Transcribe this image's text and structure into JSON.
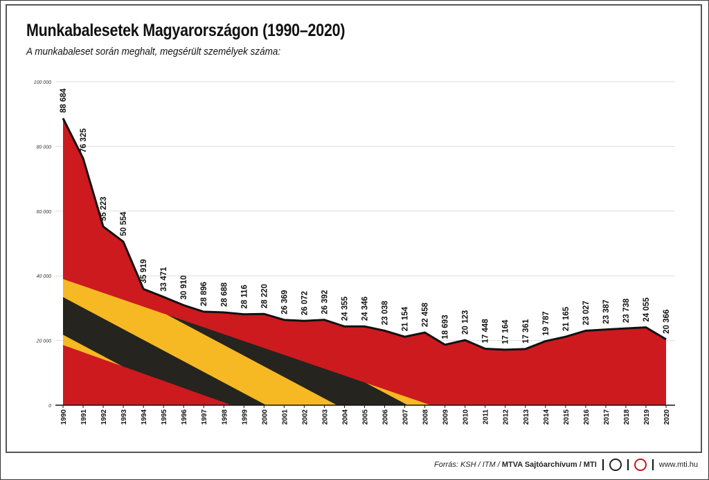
{
  "title": "Munkabalesetek Magyarországon (1990–2020)",
  "subtitle": "A munkabaleset során meghalt, megsérült személyek száma:",
  "footer": {
    "source_prefix": "Forrás: KSH / ITM / ",
    "source_bold": "MTVA Sajtóarchívum / MTI",
    "website": "www.mti.hu"
  },
  "colors": {
    "area": "#cc1a1f",
    "line": "#111111",
    "stripe_yellow": "#f6b923",
    "stripe_black": "#26241f"
  },
  "chart_data": {
    "type": "area",
    "title": "Munkabalesetek Magyarországon (1990–2020)",
    "ylim": [
      0,
      100000
    ],
    "yticks": [
      0,
      20000,
      40000,
      60000,
      80000,
      100000
    ],
    "ytick_labels": [
      "0",
      "20 000",
      "40 000",
      "60 000",
      "80 000",
      "100 000"
    ],
    "grid": true,
    "x": [
      1990,
      1991,
      1992,
      1993,
      1994,
      1995,
      1996,
      1997,
      1998,
      1999,
      2000,
      2001,
      2002,
      2003,
      2004,
      2005,
      2006,
      2007,
      2008,
      2009,
      2010,
      2011,
      2012,
      2013,
      2014,
      2015,
      2016,
      2017,
      2018,
      2019,
      2020
    ],
    "values": [
      88684,
      76325,
      55223,
      50554,
      35919,
      33471,
      30910,
      28896,
      28688,
      28116,
      28220,
      26369,
      26072,
      26392,
      24355,
      24346,
      23038,
      21154,
      22458,
      18693,
      20123,
      17448,
      17164,
      17361,
      19787,
      21165,
      23027,
      23387,
      23738,
      24055,
      20366
    ],
    "labels": [
      "88 684",
      "76 325",
      "55 223",
      "50 554",
      "35 919",
      "33 471",
      "30 910",
      "28 896",
      "28 688",
      "28 116",
      "28 220",
      "26 369",
      "26 072",
      "26 392",
      "24 355",
      "24 346",
      "23 038",
      "21 154",
      "22 458",
      "18 693",
      "20 123",
      "17 448",
      "17 164",
      "17 361",
      "19 787",
      "21 165",
      "23 027",
      "23 387",
      "23 738",
      "24 055",
      "20 366"
    ]
  }
}
